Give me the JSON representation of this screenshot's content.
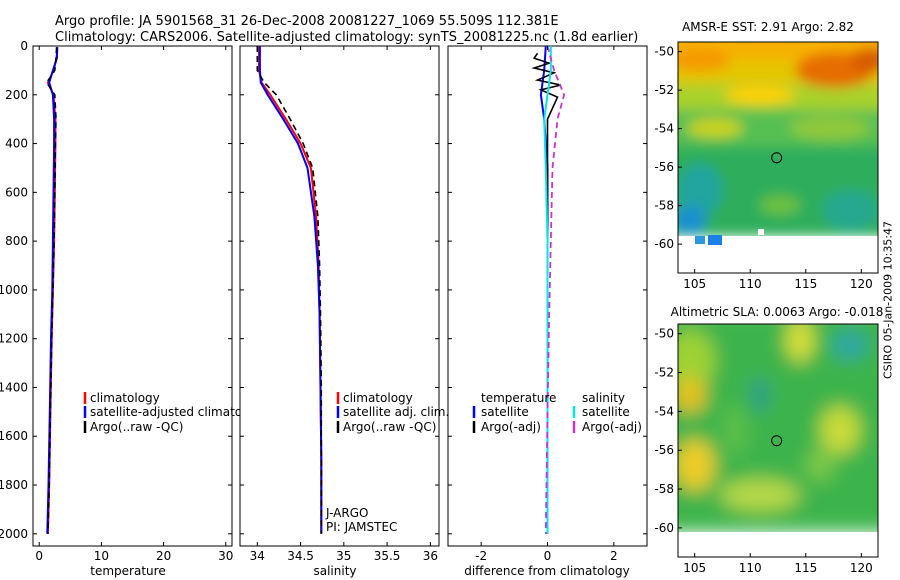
{
  "header": {
    "line1": "Argo profile: JA 5901568_31 26-Dec-2008 20081227_1069 55.509S 112.381E",
    "line2": "Climatology: CARS2006. Satellite-adjusted climatology: synTS_20081225.nc (1.8d earlier)"
  },
  "credit": "CSIRO 05-Jan-2009 10:35:47",
  "colors": {
    "red": "#ff0000",
    "blue": "#0000ff",
    "black": "#000000",
    "cyan": "#00e5ee",
    "magenta": "#cc33cc"
  },
  "chart_data": [
    {
      "type": "line",
      "id": "temperature",
      "xlabel": "temperature",
      "ylabel": "",
      "xlim": [
        -1,
        31
      ],
      "ylim": [
        2050,
        0
      ],
      "y_reversed": true,
      "x_ticks": [
        0,
        10,
        20,
        30
      ],
      "y_ticks": [
        0,
        200,
        400,
        600,
        800,
        1000,
        1200,
        1400,
        1600,
        1800,
        2000
      ],
      "legend": [
        "climatology",
        "satellite-adjusted climatology",
        "Argo(..raw -QC)"
      ],
      "series": [
        {
          "name": "climatology",
          "color": "red",
          "dash": false,
          "x": [
            2.9,
            2.8,
            2.3,
            1.4,
            2.3,
            2.6,
            2.6,
            2.5,
            2.4,
            2.2,
            2.0,
            1.8,
            1.6,
            1.4
          ],
          "y": [
            5,
            50,
            100,
            150,
            200,
            300,
            400,
            600,
            800,
            1000,
            1200,
            1500,
            1800,
            2000
          ]
        },
        {
          "name": "satellite-adjusted climatology",
          "color": "blue",
          "dash": false,
          "x": [
            2.9,
            2.85,
            2.2,
            1.6,
            2.2,
            2.4,
            2.4,
            2.3,
            2.2,
            2.1,
            1.9,
            1.7,
            1.5,
            1.3
          ],
          "y": [
            5,
            50,
            100,
            150,
            200,
            300,
            400,
            600,
            800,
            1000,
            1200,
            1500,
            1800,
            2000
          ]
        },
        {
          "name": "Argo(..raw -QC)",
          "color": "black",
          "dash": true,
          "x": [
            2.8,
            2.7,
            2.5,
            1.2,
            2.5,
            2.7,
            2.6,
            2.5,
            2.4,
            2.2,
            2.0,
            1.8,
            1.6,
            1.4
          ],
          "y": [
            5,
            50,
            100,
            150,
            200,
            300,
            400,
            600,
            800,
            1000,
            1200,
            1500,
            1800,
            2000
          ]
        }
      ]
    },
    {
      "type": "line",
      "id": "salinity",
      "xlabel": "salinity",
      "ylabel": "",
      "xlim": [
        33.8,
        36.1
      ],
      "ylim": [
        2050,
        0
      ],
      "y_reversed": true,
      "x_ticks": [
        34,
        34.5,
        35,
        35.5,
        36
      ],
      "x_tick_labels": [
        "34",
        "34.5",
        "35",
        "35.5",
        "36"
      ],
      "legend": [
        "climatology",
        "satellite adj. clim.",
        "Argo(..raw -QC)"
      ],
      "annotation": [
        "J-ARGO",
        "PI: JAMSTEC"
      ],
      "series": [
        {
          "name": "climatology",
          "color": "red",
          "dash": false,
          "x": [
            34.02,
            34.02,
            34.05,
            34.15,
            34.33,
            34.5,
            34.62,
            34.68,
            34.71,
            34.72,
            34.73,
            34.74,
            34.74
          ],
          "y": [
            0,
            100,
            150,
            200,
            300,
            400,
            500,
            700,
            900,
            1100,
            1400,
            1700,
            2000
          ]
        },
        {
          "name": "satellite adj. clim.",
          "color": "blue",
          "dash": false,
          "x": [
            34.03,
            34.03,
            34.04,
            34.12,
            34.3,
            34.47,
            34.58,
            34.66,
            34.7,
            34.72,
            34.73,
            34.74,
            34.74
          ],
          "y": [
            0,
            100,
            150,
            200,
            300,
            400,
            500,
            700,
            900,
            1100,
            1400,
            1700,
            2000
          ]
        },
        {
          "name": "Argo(..raw -QC)",
          "color": "black",
          "dash": true,
          "x": [
            34.0,
            34.0,
            34.08,
            34.22,
            34.38,
            34.53,
            34.64,
            34.7,
            34.72,
            34.73,
            34.74,
            34.74,
            34.74
          ],
          "y": [
            0,
            100,
            150,
            200,
            300,
            400,
            500,
            700,
            900,
            1100,
            1400,
            1700,
            2000
          ]
        }
      ]
    },
    {
      "type": "line",
      "id": "difference",
      "xlabel": "difference from climatology",
      "ylabel": "",
      "xlim": [
        -3,
        3
      ],
      "ylim": [
        2050,
        0
      ],
      "y_reversed": true,
      "x_ticks": [
        -2,
        0,
        2
      ],
      "legend_title_left": "temperature",
      "legend_title_right": "salinity",
      "legend": [
        "satellite",
        "Argo(-adj)",
        "satellite",
        "Argo(-adj)"
      ],
      "series": [
        {
          "name": "temperature satellite",
          "color": "blue",
          "dash": false,
          "x": [
            -0.05,
            -0.1,
            -0.2,
            -0.1,
            0.0,
            0.0,
            0.0,
            0.0,
            0.0
          ],
          "y": [
            0,
            100,
            200,
            300,
            500,
            800,
            1200,
            1600,
            2000
          ]
        },
        {
          "name": "temperature Argo(-adj)",
          "color": "black",
          "dash": false,
          "x": [
            -0.3,
            -0.4,
            0.05,
            -0.4,
            0.2,
            -0.3,
            0.4,
            -0.2,
            0.3,
            0.0,
            0.0,
            0.0,
            0.0,
            0.0
          ],
          "y": [
            30,
            50,
            70,
            90,
            110,
            140,
            160,
            180,
            210,
            300,
            500,
            800,
            1200,
            2000
          ]
        },
        {
          "name": "salinity satellite",
          "color": "cyan",
          "dash": false,
          "x": [
            0.1,
            0.1,
            0.05,
            -0.1,
            -0.05,
            0.0,
            0.0,
            0.0,
            0.0
          ],
          "y": [
            0,
            100,
            150,
            300,
            500,
            800,
            1200,
            1600,
            2000
          ]
        },
        {
          "name": "salinity Argo(-adj)",
          "color": "magenta",
          "dash": true,
          "x": [
            0.0,
            0.2,
            0.5,
            0.3,
            0.15,
            0.1,
            0.05,
            0.0,
            -0.05
          ],
          "y": [
            0,
            100,
            200,
            300,
            500,
            800,
            1100,
            1500,
            2000
          ]
        }
      ]
    },
    {
      "type": "heatmap",
      "id": "sst",
      "title": "AMSR-E SST: 2.91 Argo: 2.82",
      "xlim": [
        103.5,
        121.5
      ],
      "ylim": [
        -61.5,
        -49.5
      ],
      "x_ticks": [
        105,
        110,
        115,
        120
      ],
      "y_ticks": [
        -50,
        -52,
        -54,
        -56,
        -58,
        -60
      ],
      "marker": {
        "lon": 112.38,
        "lat": -55.51
      }
    },
    {
      "type": "heatmap",
      "id": "sla",
      "title": "Altimetric SLA: 0.0063 Argo: -0.018",
      "xlim": [
        103.5,
        121.5
      ],
      "ylim": [
        -61.5,
        -49.5
      ],
      "x_ticks": [
        105,
        110,
        115,
        120
      ],
      "y_ticks": [
        -50,
        -52,
        -54,
        -56,
        -58,
        -60
      ],
      "marker": {
        "lon": 112.38,
        "lat": -55.51
      }
    }
  ]
}
